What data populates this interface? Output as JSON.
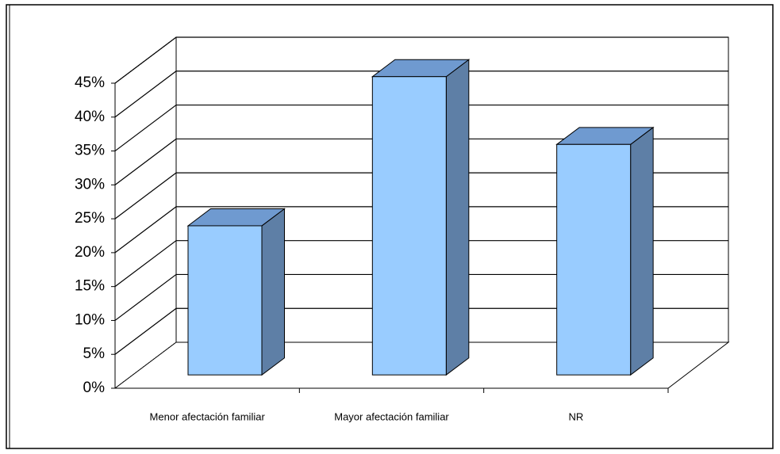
{
  "chart_data": {
    "type": "bar3d",
    "categories": [
      "Menor afectación familiar",
      "Mayor afectación familiar",
      "NR"
    ],
    "values": [
      22,
      44,
      34
    ],
    "color": "#99ccff",
    "ylim": [
      0,
      45
    ],
    "yticks": [
      {
        "value": 0,
        "label": "0%"
      },
      {
        "value": 5,
        "label": "5%"
      },
      {
        "value": 10,
        "label": "10%"
      },
      {
        "value": 15,
        "label": "15%"
      },
      {
        "value": 20,
        "label": "20%"
      },
      {
        "value": 25,
        "label": "25%"
      },
      {
        "value": 30,
        "label": "30%"
      },
      {
        "value": 35,
        "label": "35%"
      },
      {
        "value": 40,
        "label": "40%"
      },
      {
        "value": 45,
        "label": "45%"
      }
    ],
    "grid": true
  }
}
